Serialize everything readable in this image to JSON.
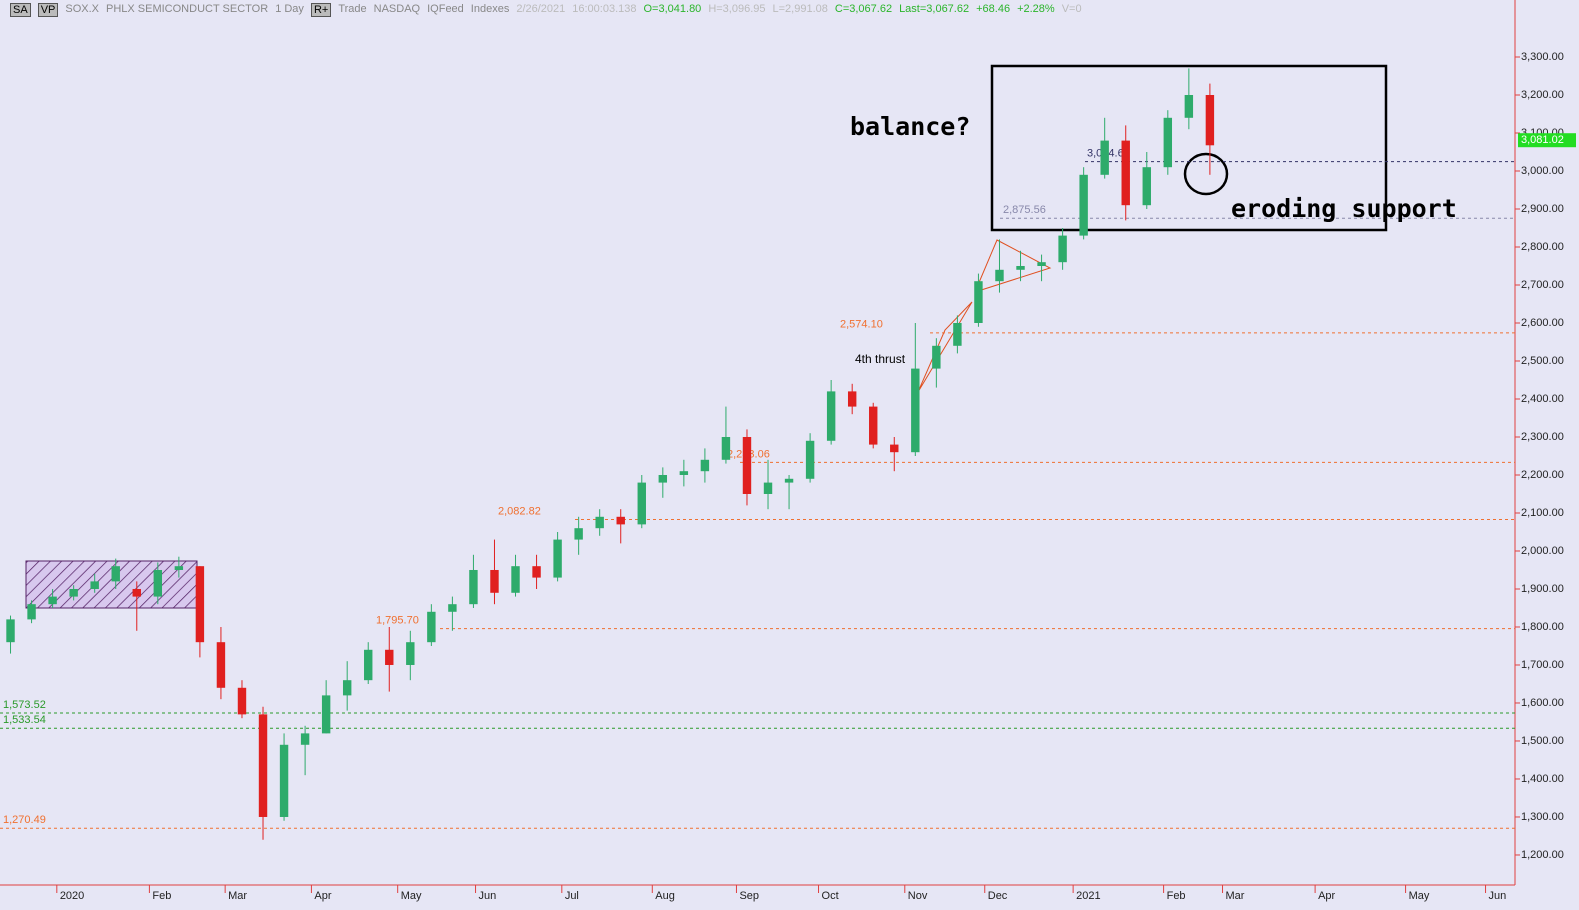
{
  "header": {
    "items": [
      {
        "text": "SA",
        "color": "#000",
        "button": true
      },
      {
        "text": "VP",
        "color": "#000",
        "button": true
      },
      {
        "text": "SOX.X",
        "color": "#888"
      },
      {
        "text": "PHLX SEMICONDUCT SECTOR",
        "color": "#888"
      },
      {
        "text": "1 Day",
        "color": "#888"
      },
      {
        "text": "R+",
        "color": "#000",
        "button": true
      },
      {
        "text": "Trade",
        "color": "#888"
      },
      {
        "text": "NASDAQ",
        "color": "#888"
      },
      {
        "text": "IQFeed",
        "color": "#888"
      },
      {
        "text": "Indexes",
        "color": "#888"
      },
      {
        "text": "2/26/2021",
        "color": "#bbb"
      },
      {
        "text": "16:00:03.138",
        "color": "#bbb"
      },
      {
        "text": "O=3,041.80",
        "color": "#2bb52b"
      },
      {
        "text": "H=3,096.95",
        "color": "#bbb"
      },
      {
        "text": "L=2,991.08",
        "color": "#bbb"
      },
      {
        "text": "C=3,067.62",
        "color": "#2bb52b"
      },
      {
        "text": "Last=3,067.62",
        "color": "#2bb52b"
      },
      {
        "text": "+68.46",
        "color": "#2bb52b"
      },
      {
        "text": "+2.28%",
        "color": "#2bb52b"
      },
      {
        "text": "V=0",
        "color": "#bbb"
      }
    ]
  },
  "chart_data": {
    "type": "candlestick",
    "xlim": [
      0,
      72
    ],
    "xticks": [
      {
        "value": 2.7,
        "label": "2020"
      },
      {
        "value": 7.1,
        "label": "Feb"
      },
      {
        "value": 10.7,
        "label": "Mar"
      },
      {
        "value": 14.8,
        "label": "Apr"
      },
      {
        "value": 18.9,
        "label": "May"
      },
      {
        "value": 22.6,
        "label": "Jun"
      },
      {
        "value": 26.7,
        "label": "Jul"
      },
      {
        "value": 31,
        "label": "Aug"
      },
      {
        "value": 35,
        "label": "Sep"
      },
      {
        "value": 38.9,
        "label": "Oct"
      },
      {
        "value": 43,
        "label": "Nov"
      },
      {
        "value": 46.8,
        "label": "Dec"
      },
      {
        "value": 51,
        "label": "2021"
      },
      {
        "value": 55.3,
        "label": "Feb"
      },
      {
        "value": 58.1,
        "label": "Mar"
      },
      {
        "value": 62.5,
        "label": "Apr"
      },
      {
        "value": 66.8,
        "label": "May"
      },
      {
        "value": 70.6,
        "label": "Jun"
      }
    ],
    "ylim": [
      1121,
      3450
    ],
    "yticks": [
      {
        "value": 1200,
        "label": "1,200.00"
      },
      {
        "value": 1300,
        "label": "1,300.00"
      },
      {
        "value": 1400,
        "label": "1,400.00"
      },
      {
        "value": 1500,
        "label": "1,500.00"
      },
      {
        "value": 1600,
        "label": "1,600.00"
      },
      {
        "value": 1700,
        "label": "1,700.00"
      },
      {
        "value": 1800,
        "label": "1,800.00"
      },
      {
        "value": 1900,
        "label": "1,900.00"
      },
      {
        "value": 2000,
        "label": "2,000.00"
      },
      {
        "value": 2100,
        "label": "2,100.00"
      },
      {
        "value": 2200,
        "label": "2,200.00"
      },
      {
        "value": 2300,
        "label": "2,300.00"
      },
      {
        "value": 2400,
        "label": "2,400.00"
      },
      {
        "value": 2500,
        "label": "2,500.00"
      },
      {
        "value": 2600,
        "label": "2,600.00"
      },
      {
        "value": 2700,
        "label": "2,700.00"
      },
      {
        "value": 2800,
        "label": "2,800.00"
      },
      {
        "value": 2900,
        "label": "2,900.00"
      },
      {
        "value": 3000,
        "label": "3,000.00"
      },
      {
        "value": 3100,
        "label": "3,100.00"
      },
      {
        "value": 3200,
        "label": "3,200.00"
      },
      {
        "value": 3300,
        "label": "3,300.00"
      }
    ],
    "up_color": "#2eab6b",
    "down_color": "#e0201f",
    "open": [
      1760,
      1820,
      1860,
      1880,
      1900,
      1920,
      1900,
      1880,
      1950,
      1960,
      1760,
      1640,
      1570,
      1300,
      1490,
      1520,
      1620,
      1660,
      1740,
      1700,
      1760,
      1840,
      1860,
      1950,
      1890,
      1960,
      1930,
      2030,
      2060,
      2090,
      2070,
      2180,
      2200,
      2210,
      2240,
      2300,
      2150,
      2180,
      2190,
      2290,
      2420,
      2380,
      2280,
      2260,
      2480,
      2540,
      2600,
      2710,
      2740,
      2750,
      2760,
      2830,
      2990,
      3080,
      2910,
      3010,
      3140,
      3200
    ],
    "high": [
      1830,
      1870,
      1900,
      1910,
      1940,
      1980,
      1920,
      1970,
      1985,
      1960,
      1800,
      1660,
      1590,
      1520,
      1540,
      1660,
      1710,
      1760,
      1800,
      1790,
      1860,
      1880,
      1990,
      2030,
      1990,
      1990,
      2050,
      2090,
      2110,
      2110,
      2200,
      2220,
      2240,
      2270,
      2380,
      2320,
      2240,
      2200,
      2310,
      2450,
      2440,
      2390,
      2300,
      2600,
      2560,
      2620,
      2730,
      2820,
      2790,
      2780,
      2850,
      3010,
      3140,
      3120,
      3050,
      3160,
      3270,
      3230
    ],
    "low": [
      1730,
      1810,
      1850,
      1870,
      1890,
      1900,
      1790,
      1860,
      1930,
      1720,
      1610,
      1560,
      1240,
      1290,
      1410,
      1520,
      1580,
      1650,
      1630,
      1660,
      1750,
      1790,
      1850,
      1860,
      1880,
      1900,
      1920,
      1990,
      2040,
      2020,
      2060,
      2140,
      2170,
      2180,
      2230,
      2120,
      2110,
      2110,
      2180,
      2280,
      2360,
      2270,
      2210,
      2250,
      2430,
      2520,
      2590,
      2680,
      2710,
      2710,
      2740,
      2820,
      2980,
      2870,
      2900,
      2990,
      3110,
      2990
    ],
    "close": [
      1820,
      1860,
      1880,
      1900,
      1920,
      1960,
      1880,
      1950,
      1960,
      1760,
      1640,
      1570,
      1300,
      1490,
      1520,
      1620,
      1660,
      1740,
      1700,
      1760,
      1840,
      1860,
      1950,
      1890,
      1960,
      1930,
      2030,
      2060,
      2090,
      2070,
      2180,
      2200,
      2210,
      2240,
      2300,
      2150,
      2180,
      2190,
      2290,
      2420,
      2380,
      2280,
      2260,
      2480,
      2540,
      2600,
      2710,
      2740,
      2750,
      2760,
      2830,
      2990,
      3080,
      2910,
      3010,
      3140,
      3200,
      3067.62
    ],
    "levels": [
      {
        "value": 2574.1,
        "label": "2,574.10",
        "color": "#f07030"
      },
      {
        "value": 2233.06,
        "label": "2,233.06",
        "color": "#f07030"
      },
      {
        "value": 2082.82,
        "label": "2,082.82",
        "color": "#f07030"
      },
      {
        "value": 1795.7,
        "label": "1,795.70",
        "color": "#f07030"
      },
      {
        "value": 1270.49,
        "label": "1,270.49",
        "color": "#f07030"
      },
      {
        "value": 1573.52,
        "label": "1,573.52",
        "color": "#2a9a2a"
      },
      {
        "value": 1533.54,
        "label": "1,533.54",
        "color": "#2a9a2a"
      },
      {
        "value": 3024.67,
        "label": "3,024.67",
        "color": "#333366"
      },
      {
        "value": 2875.56,
        "label": "2,875.56",
        "color": "#8888aa"
      }
    ],
    "price_tag": {
      "value": 3081.02,
      "label": "3,081.02",
      "color": "#22dd22"
    },
    "annotations": [
      "balance?",
      "eroding support",
      "4th thrust"
    ]
  }
}
